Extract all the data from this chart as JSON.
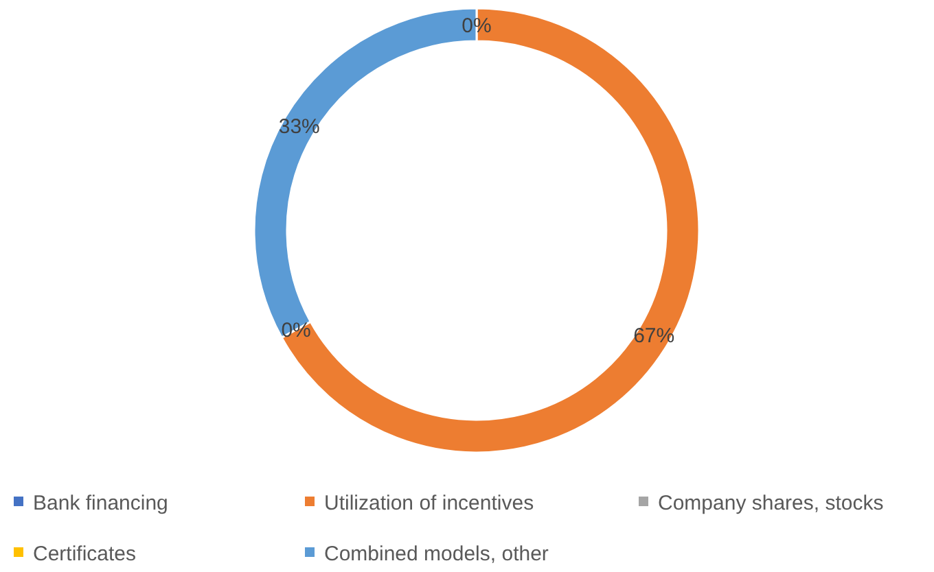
{
  "chart_data": {
    "type": "donut",
    "categories": [
      "Bank financing",
      "Utilization of incentives",
      "Company shares, stocks",
      "Certificates",
      "Combined models, other"
    ],
    "values": [
      0,
      67,
      0,
      0,
      33
    ],
    "colors": [
      "#4472c4",
      "#ed7d31",
      "#a5a5a5",
      "#ffc000",
      "#5b9bd5"
    ],
    "value_labels": [
      "0%",
      "67%",
      "0%",
      null,
      "33%"
    ],
    "legend": "bottom"
  }
}
